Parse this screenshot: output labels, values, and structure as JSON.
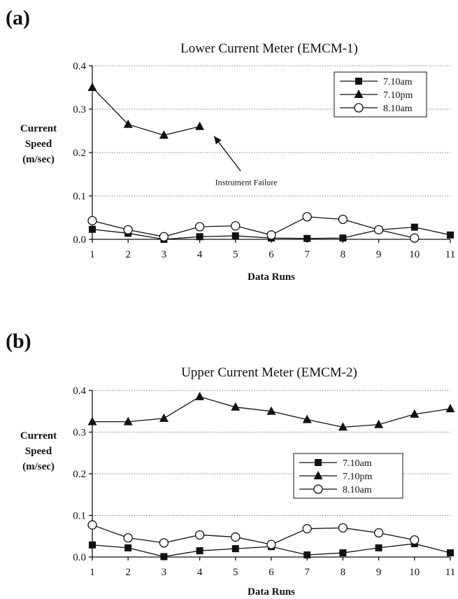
{
  "chart_data": [
    {
      "type": "line",
      "panel_label": "(a)",
      "title": "Lower Current Meter (EMCM-1)",
      "ylabel": [
        "Current",
        "Speed",
        "(m/sec)"
      ],
      "xlabel": "Data Runs",
      "ylim": [
        0,
        0.4
      ],
      "yticks": [
        "0.0",
        "0.1",
        "0.2",
        "0.3",
        "0.4"
      ],
      "x": [
        1,
        2,
        3,
        4,
        5,
        6,
        7,
        8,
        9,
        10,
        11
      ],
      "grid": "horizontal dotted",
      "legend_position": "top-right",
      "series": [
        {
          "name": "7.10am",
          "marker": "square",
          "x": [
            1,
            2,
            3,
            4,
            5,
            6,
            7,
            8,
            9,
            10,
            11
          ],
          "values": [
            0.023,
            0.014,
            0.0,
            0.006,
            0.008,
            0.003,
            0.002,
            0.003,
            0.022,
            0.028,
            0.01
          ]
        },
        {
          "name": "7.10pm",
          "marker": "triangle",
          "x": [
            1,
            2,
            3,
            4
          ],
          "values": [
            0.35,
            0.265,
            0.24,
            0.26
          ]
        },
        {
          "name": "8.10am",
          "marker": "circle",
          "x": [
            1,
            2,
            3,
            4,
            5,
            6,
            7,
            8,
            9,
            10
          ],
          "values": [
            0.043,
            0.022,
            0.006,
            0.029,
            0.031,
            0.01,
            0.052,
            0.046,
            0.022,
            0.003
          ]
        }
      ],
      "annotations": [
        {
          "text": "Instrument Failure",
          "x": 5.3,
          "y": 0.125,
          "arrow_to": [
            4.4,
            0.238
          ]
        }
      ]
    },
    {
      "type": "line",
      "panel_label": "(b)",
      "title": "Upper Current Meter (EMCM-2)",
      "ylabel": [
        "Current",
        "Speed",
        "(m/sec)"
      ],
      "xlabel": "Data Runs",
      "ylim": [
        0,
        0.4
      ],
      "yticks": [
        "0.0",
        "0.1",
        "0.2",
        "0.3",
        "0.4"
      ],
      "x": [
        1,
        2,
        3,
        4,
        5,
        6,
        7,
        8,
        9,
        10,
        11
      ],
      "grid": "horizontal dotted",
      "legend_position": "center-right",
      "series": [
        {
          "name": "7.10am",
          "marker": "square",
          "x": [
            1,
            2,
            3,
            4,
            5,
            6,
            7,
            8,
            9,
            10,
            11
          ],
          "values": [
            0.029,
            0.022,
            0.001,
            0.015,
            0.02,
            0.025,
            0.005,
            0.01,
            0.022,
            0.032,
            0.01
          ]
        },
        {
          "name": "7.10pm",
          "marker": "triangle",
          "x": [
            1,
            2,
            3,
            4,
            5,
            6,
            7,
            8,
            9,
            10,
            11
          ],
          "values": [
            0.325,
            0.325,
            0.333,
            0.385,
            0.36,
            0.35,
            0.33,
            0.312,
            0.318,
            0.343,
            0.356
          ]
        },
        {
          "name": "8.10am",
          "marker": "circle",
          "x": [
            1,
            2,
            3,
            4,
            5,
            6,
            7,
            8,
            9,
            10
          ],
          "values": [
            0.077,
            0.046,
            0.034,
            0.053,
            0.048,
            0.03,
            0.068,
            0.07,
            0.058,
            0.041
          ]
        }
      ],
      "annotations": []
    }
  ]
}
